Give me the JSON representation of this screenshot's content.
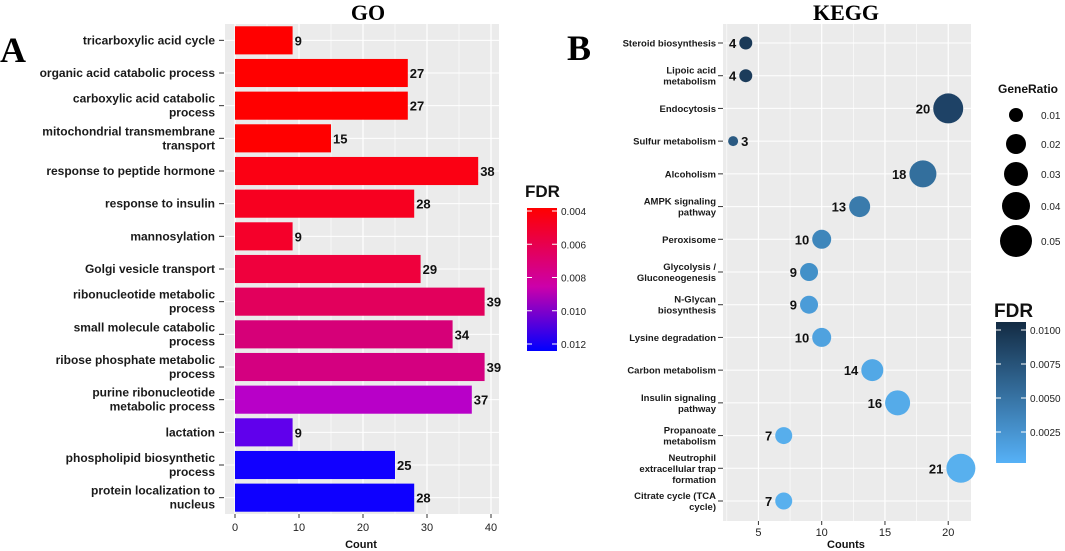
{
  "chart_data": [
    {
      "type": "bar",
      "panel": "A",
      "title": "GO",
      "orientation": "horizontal",
      "xlabel": "Count",
      "ylabel": "",
      "xlim": [
        0,
        40
      ],
      "xticks": [
        0,
        10,
        20,
        30,
        40
      ],
      "categories": [
        [
          "tricarboxylic acid cycle"
        ],
        [
          "organic acid catabolic process"
        ],
        [
          "carboxylic acid catabolic",
          "process"
        ],
        [
          "mitochondrial transmembrane",
          "transport"
        ],
        [
          "response to peptide hormone"
        ],
        [
          "response to insulin"
        ],
        [
          "mannosylation"
        ],
        [
          "Golgi vesicle transport"
        ],
        [
          "ribonucleotide metabolic",
          "process"
        ],
        [
          "small molecule catabolic",
          "process"
        ],
        [
          "ribose phosphate metabolic",
          "process"
        ],
        [
          "purine ribonucleotide",
          "metabolic process"
        ],
        [
          "lactation"
        ],
        [
          "phospholipid biosynthetic",
          "process"
        ],
        [
          "protein localization to",
          "nucleus"
        ]
      ],
      "values": [
        9,
        27,
        27,
        15,
        38,
        28,
        9,
        29,
        39,
        34,
        39,
        37,
        9,
        25,
        28
      ],
      "colors": [
        "#ff0000",
        "#ff0000",
        "#ff0000",
        "#ff0000",
        "#fb0013",
        "#f70020",
        "#f5002a",
        "#ef003d",
        "#e2005c",
        "#d60078",
        "#d40080",
        "#b800c8",
        "#6000ec",
        "#1100ff",
        "#0e00ff"
      ],
      "legend": {
        "title": "FDR",
        "ticks": [
          "0.004",
          "0.006",
          "0.008",
          "0.010",
          "0.012"
        ],
        "low_color": "#ff0000",
        "mid_color": "#cc00aa",
        "high_color": "#0000ff",
        "position": "right"
      },
      "grid": true
    },
    {
      "type": "scatter",
      "panel": "B",
      "title": "KEGG",
      "xlabel": "Counts",
      "ylabel": "",
      "xlim": [
        2.2,
        21.8
      ],
      "xticks": [
        5,
        10,
        15,
        20
      ],
      "categories": [
        [
          "Steroid biosynthesis"
        ],
        [
          "Lipoic acid",
          "metabolism"
        ],
        [
          "Endocytosis"
        ],
        [
          "Sulfur metabolism"
        ],
        [
          "Alcoholism"
        ],
        [
          "AMPK signaling",
          "pathway"
        ],
        [
          "Peroxisome"
        ],
        [
          "Glycolysis /",
          "Gluconeogenesis"
        ],
        [
          "N-Glycan",
          "biosynthesis"
        ],
        [
          "Lysine degradation"
        ],
        [
          "Carbon metabolism"
        ],
        [
          "Insulin signaling",
          "pathway"
        ],
        [
          "Propanoate",
          "metabolism"
        ],
        [
          "Neutrophil",
          "extracellular trap",
          "formation"
        ],
        [
          "Citrate cycle (TCA",
          "cycle)"
        ]
      ],
      "values": [
        4,
        4,
        20,
        3,
        18,
        13,
        10,
        9,
        9,
        10,
        14,
        16,
        7,
        21,
        7
      ],
      "sizes": [
        13,
        13,
        30,
        10,
        27,
        21,
        19,
        18,
        18,
        19,
        22,
        25,
        17,
        29,
        17
      ],
      "colors": [
        "#1b3a58",
        "#1c3c5b",
        "#1e4266",
        "#2a5a82",
        "#336f9d",
        "#3a7bac",
        "#3e86bb",
        "#4290c8",
        "#4b9cd8",
        "#4fa2df",
        "#52a8e6",
        "#55abe9",
        "#57aeec",
        "#58b0ee",
        "#58b0ee"
      ],
      "legend_size": {
        "title": "GeneRatio",
        "labels": [
          "0.01",
          "0.02",
          "0.03",
          "0.04",
          "0.05"
        ],
        "radii": [
          7,
          10,
          12,
          14,
          16
        ]
      },
      "legend_color": {
        "title": "FDR",
        "ticks": [
          "0.0100",
          "0.0075",
          "0.0050",
          "0.0025"
        ],
        "dark_color": "#132b43",
        "light_color": "#56b1f7"
      },
      "grid": true
    }
  ]
}
